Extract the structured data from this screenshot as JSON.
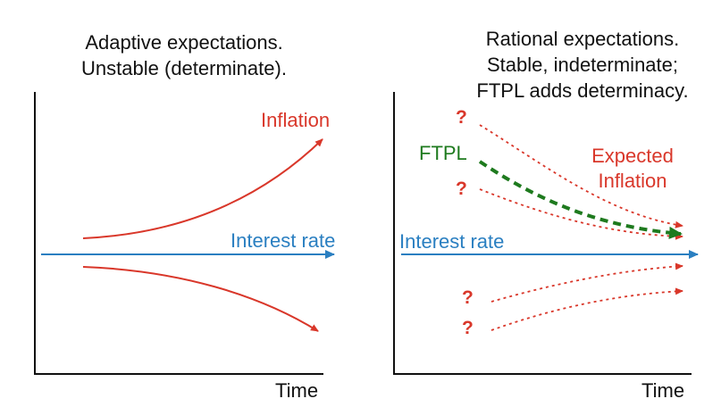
{
  "colors": {
    "inflation": "#d9372a",
    "interest": "#2a7fc1",
    "ftpl": "#1e7a1e",
    "axis": "#111111"
  },
  "left_panel": {
    "title_line1": "Adaptive expectations.",
    "title_line2": "Unstable (determinate).",
    "inflation_label": "Inflation",
    "interest_label": "Interest rate",
    "x_axis_label": "Time"
  },
  "right_panel": {
    "title_line1": "Rational expectations.",
    "title_line2": "Stable, indeterminate;",
    "title_line3": "FTPL adds determinacy.",
    "ftpl_label": "FTPL",
    "expected_line1": "Expected",
    "expected_line2": "Inflation",
    "interest_label": "Interest rate",
    "x_axis_label": "Time",
    "unknown_marks": [
      "?",
      "?",
      "?",
      "?"
    ]
  }
}
